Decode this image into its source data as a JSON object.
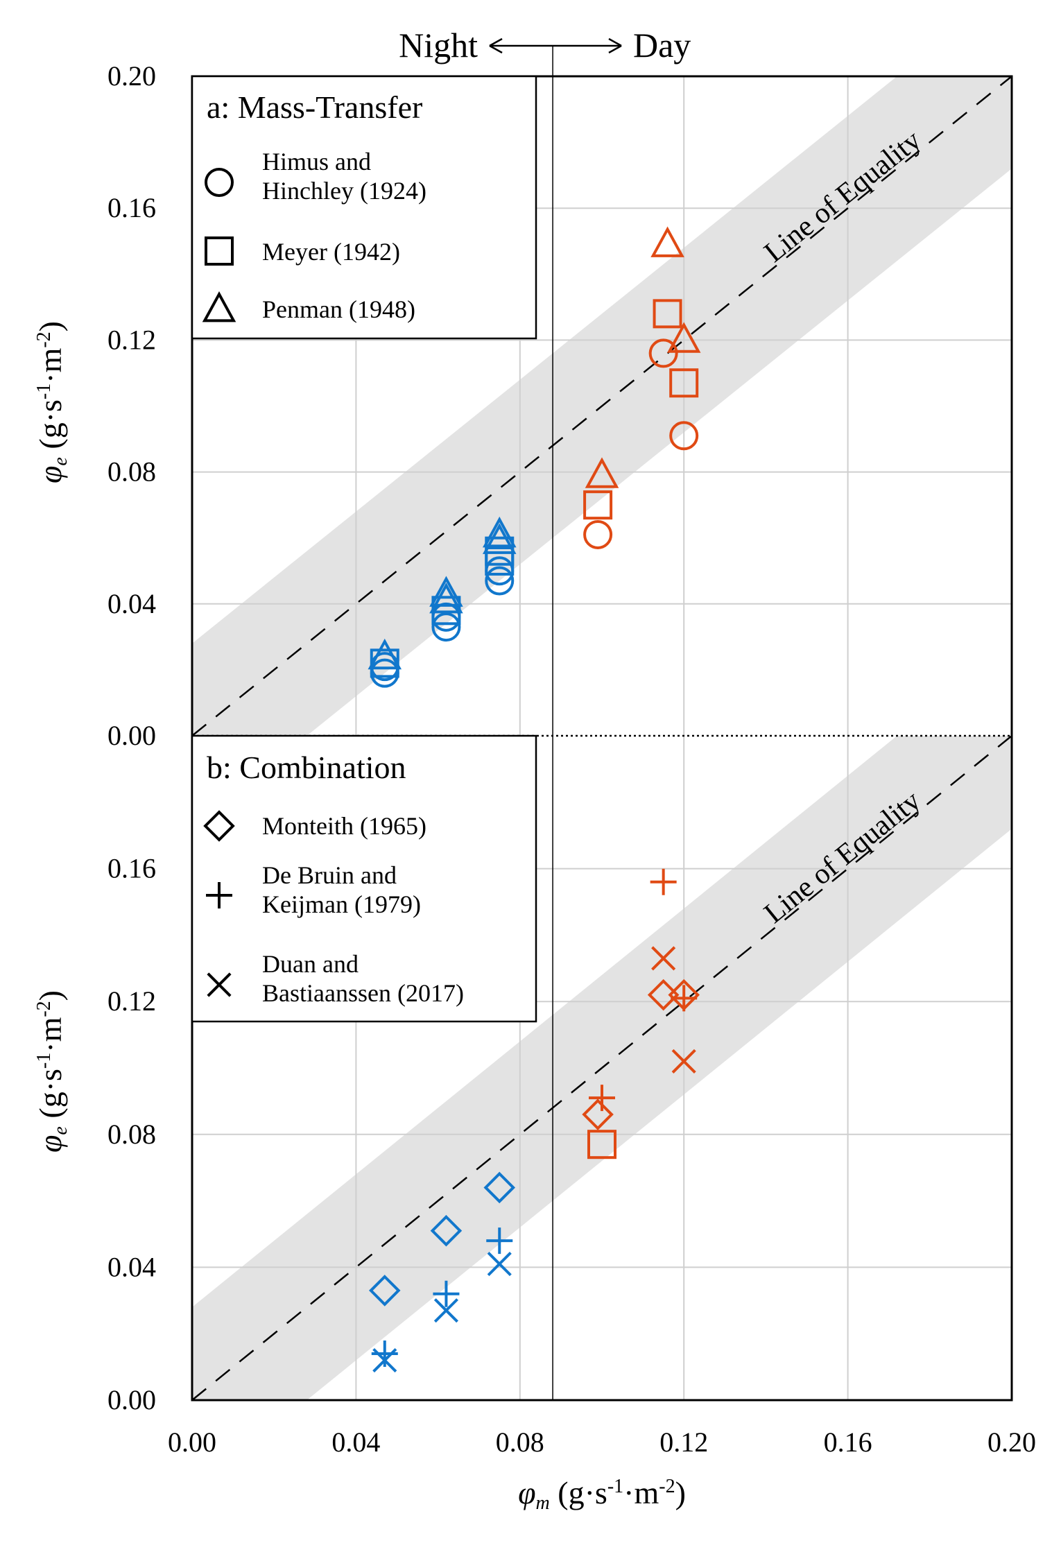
{
  "chart_data": [
    {
      "panel": "a",
      "type": "scatter",
      "legend_title": "a: Mass-Transfer",
      "xlabel": "φm (g·s⁻¹·m⁻²)",
      "ylabel": "φe (g·s⁻¹·m⁻²)",
      "xlim": [
        0,
        0.2
      ],
      "ylim": [
        0,
        0.2
      ],
      "yticks": [
        "0.00",
        "0.04",
        "0.08",
        "0.12",
        "0.16",
        "0.20"
      ],
      "equality_label": "Line of Equality",
      "series": [
        {
          "name": "Himus and Hinchley (1924)",
          "label_lines": [
            "Himus and",
            "Hinchley (1924)"
          ],
          "marker": "circle",
          "points": [
            [
              0.047,
              0.019
            ],
            [
              0.047,
              0.021
            ],
            [
              0.062,
              0.033
            ],
            [
              0.062,
              0.036
            ],
            [
              0.075,
              0.047
            ],
            [
              0.075,
              0.05
            ],
            [
              0.099,
              0.061
            ],
            [
              0.115,
              0.116
            ],
            [
              0.12,
              0.091
            ]
          ]
        },
        {
          "name": "Meyer (1942)",
          "label_lines": [
            "Meyer (1942)"
          ],
          "marker": "square",
          "points": [
            [
              0.047,
              0.022
            ],
            [
              0.062,
              0.038
            ],
            [
              0.075,
              0.053
            ],
            [
              0.075,
              0.056
            ],
            [
              0.099,
              0.07
            ],
            [
              0.116,
              0.128
            ],
            [
              0.12,
              0.107
            ]
          ]
        },
        {
          "name": "Penman (1948)",
          "label_lines": [
            "Penman (1948)"
          ],
          "marker": "triangle",
          "points": [
            [
              0.047,
              0.024
            ],
            [
              0.062,
              0.041
            ],
            [
              0.062,
              0.043
            ],
            [
              0.075,
              0.059
            ],
            [
              0.075,
              0.061
            ],
            [
              0.1,
              0.079
            ],
            [
              0.116,
              0.149
            ],
            [
              0.12,
              0.12
            ]
          ]
        }
      ]
    },
    {
      "panel": "b",
      "type": "scatter",
      "legend_title": "b: Combination",
      "xlabel": "φm (g·s⁻¹·m⁻²)",
      "ylabel": "φe (g·s⁻¹·m⁻²)",
      "xlim": [
        0,
        0.2
      ],
      "ylim": [
        0,
        0.2
      ],
      "yticks": [
        "0.00",
        "0.04",
        "0.08",
        "0.12",
        "0.16"
      ],
      "equality_label": "Line of Equality",
      "series": [
        {
          "name": "Monteith (1965)",
          "label_lines": [
            "Monteith (1965)"
          ],
          "marker": "diamond",
          "points": [
            [
              0.047,
              0.033
            ],
            [
              0.062,
              0.051
            ],
            [
              0.075,
              0.064
            ],
            [
              0.099,
              0.086
            ],
            [
              0.115,
              0.122
            ],
            [
              0.12,
              0.122
            ]
          ]
        },
        {
          "name": "De Bruin and Keijman (1979)",
          "label_lines": [
            "De Bruin and",
            "Keijman (1979)"
          ],
          "marker": "plus",
          "points": [
            [
              0.047,
              0.014
            ],
            [
              0.062,
              0.032
            ],
            [
              0.075,
              0.048
            ],
            [
              0.1,
              0.091
            ],
            [
              0.115,
              0.156
            ],
            [
              0.12,
              0.121
            ]
          ]
        },
        {
          "name": "Duan and Bastiaanssen (2017)",
          "label_lines": [
            "Duan and",
            "Bastiaanssen (2017)"
          ],
          "marker": "x",
          "points": [
            [
              0.047,
              0.012
            ],
            [
              0.062,
              0.027
            ],
            [
              0.075,
              0.041
            ],
            [
              0.115,
              0.133
            ],
            [
              0.12,
              0.102
            ]
          ]
        },
        {
          "name": "",
          "label_lines": [],
          "marker": "square",
          "in_legend": false,
          "points": [
            [
              0.1,
              0.077
            ]
          ]
        }
      ]
    }
  ],
  "shared": {
    "xticks": [
      "0.00",
      "0.04",
      "0.08",
      "0.12",
      "0.16",
      "0.20"
    ],
    "night_label": "Night",
    "day_label": "Day",
    "divider_x": 0.088,
    "equality_band_halfwidth": 0.028,
    "colors": {
      "night": "#1177cc",
      "day": "#e04a14",
      "band": "#e3e3e3",
      "grid": "#cfcfcf"
    }
  }
}
